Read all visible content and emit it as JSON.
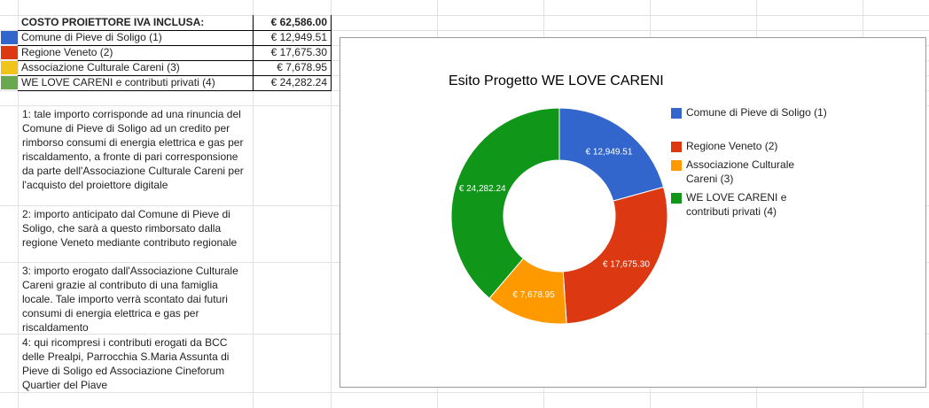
{
  "summary": {
    "title": "COSTO PROIETTORE IVA INCLUSA:",
    "total": "€ 62,586.00",
    "rows": [
      {
        "label": "Comune di Pieve di Soligo (1)",
        "amount": "€ 12,949.51",
        "color": "#3366cc"
      },
      {
        "label": "Regione Veneto (2)",
        "amount": "€ 17,675.30",
        "color": "#dc3912"
      },
      {
        "label": "Associazione Culturale Careni (3)",
        "amount": "€ 7,678.95",
        "color": "#f0c419"
      },
      {
        "label": "WE LOVE CARENI e contributi privati (4)",
        "amount": "€ 24,282.24",
        "color": "#6aa84f"
      }
    ]
  },
  "notes": [
    "1: tale importo corrisponde ad una rinuncia del Comune di Pieve di Soligo ad un credito per rimborso consumi di energia elettrica e gas per riscaldamento, a fronte di pari corresponsione da parte dell'Associazione Culturale Careni per l'acquisto del proiettore digitale",
    "2: importo anticipato dal Comune di Pieve di Soligo, che sarà a questo rimborsato dalla regione Veneto mediante contributo regionale",
    "3: importo erogato dall'Associazione Culturale Careni grazie al contributo di una famiglia locale. Tale importo verrà scontato dai futuri consumi di energia elettrica e gas per riscaldamento",
    "4: qui ricompresi i contributi erogati da BCC delle Prealpi, Parrocchia S.Maria Assunta di Pieve di Soligo ed Associazione Cineforum Quartier del Piave"
  ],
  "chart_data": {
    "type": "pie",
    "donut": true,
    "title": "Esito Progetto WE LOVE CARENI",
    "legend_position": "right",
    "slices": [
      {
        "name": "Comune di Pieve di Soligo (1)",
        "value": 12949.51,
        "label": "€ 12,949.51",
        "color": "#3366cc"
      },
      {
        "name": "Regione Veneto (2)",
        "value": 17675.3,
        "label": "€ 17,675.30",
        "color": "#dc3912"
      },
      {
        "name": "Associazione Culturale Careni (3)",
        "value": 7678.95,
        "label": "€ 7,678.95",
        "color": "#ff9900"
      },
      {
        "name": "WE LOVE CARENI e contributi privati (4)",
        "value": 24282.24,
        "label": "€ 24,282.24",
        "color": "#109618"
      }
    ]
  }
}
